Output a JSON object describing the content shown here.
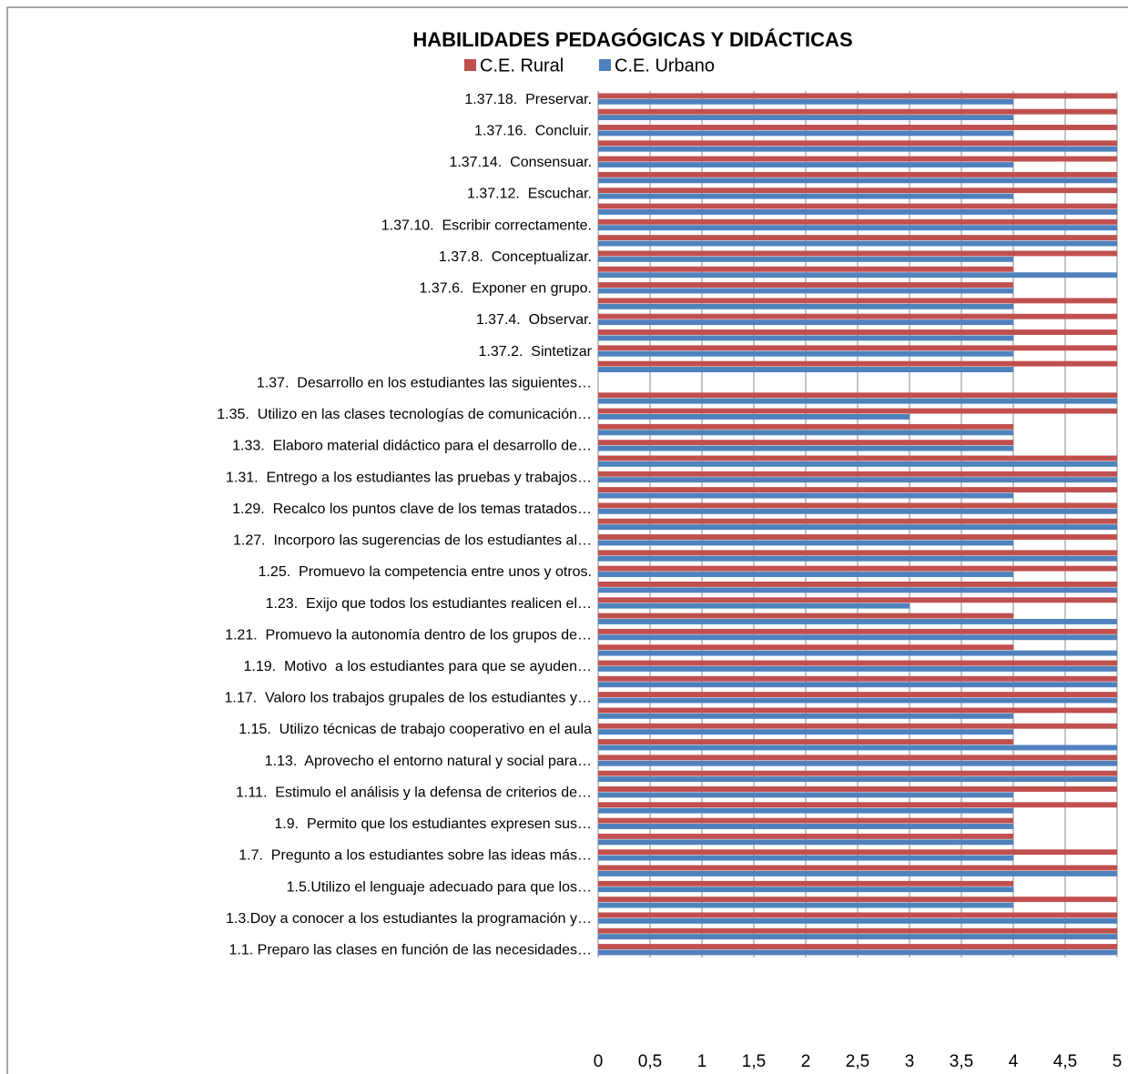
{
  "chart_data": {
    "type": "bar",
    "orientation": "horizontal",
    "title": "HABILIDADES PEDAGÓGICAS Y DIDÁCTICAS",
    "categories": [
      "1.1. Preparo las clases en función de las necesidades…",
      null,
      "1.3.Doy a conocer a los estudiantes la programación y…",
      null,
      "1.5.Utilizo el lenguaje adecuado para que los…",
      null,
      "1.7.  Pregunto a los estudiantes sobre las ideas más…",
      null,
      "1.9.  Permito que los estudiantes expresen sus…",
      null,
      "1.11.  Estimulo el análisis y la defensa de criterios de…",
      null,
      "1.13.  Aprovecho el entorno natural y social para…",
      null,
      "1.15.  Utilizo técnicas de trabajo cooperativo en el aula",
      null,
      "1.17.  Valoro los trabajos grupales de los estudiantes y…",
      null,
      "1.19.  Motivo  a los estudiantes para que se ayuden…",
      null,
      "1.21.  Promuevo la autonomía dentro de los grupos de…",
      null,
      "1.23.  Exijo que todos los estudiantes realicen el…",
      null,
      "1.25.  Promuevo la competencia entre unos y otros.",
      null,
      "1.27.  Incorporo las sugerencias de los estudiantes al…",
      null,
      "1.29.  Recalco los puntos clave de los temas tratados…",
      null,
      "1.31.  Entrego a los estudiantes las pruebas y trabajos…",
      null,
      "1.33.  Elaboro material didáctico para el desarrollo de…",
      null,
      "1.35.  Utilizo en las clases tecnologías de comunicación…",
      null,
      "1.37.  Desarrollo en los estudiantes las siguientes…",
      null,
      "1.37.2.  Sintetizar",
      null,
      "1.37.4.  Observar.",
      null,
      "1.37.6.  Exponer en grupo.",
      null,
      "1.37.8.  Conceptualizar.",
      null,
      "1.37.10.  Escribir correctamente.",
      null,
      "1.37.12.  Escuchar.",
      null,
      "1.37.14.  Consensuar.",
      null,
      "1.37.16.  Concluir.",
      null,
      "1.37.18.  Preservar."
    ],
    "series": [
      {
        "name": "C.E. Rural",
        "color": "#c0504d",
        "values": [
          5,
          5,
          5,
          5,
          4,
          5,
          5,
          4,
          4,
          5,
          5,
          5,
          5,
          4,
          5,
          5,
          5,
          5,
          5,
          4,
          5,
          4,
          5,
          5,
          5,
          5,
          5,
          5,
          5,
          5,
          5,
          5,
          4,
          4,
          5,
          5,
          null,
          5,
          5,
          5,
          5,
          5,
          4,
          4,
          5,
          5,
          5,
          5,
          5,
          5,
          5,
          5,
          5,
          5,
          5
        ]
      },
      {
        "name": "C.E. Urbano",
        "color": "#4f81bd",
        "values": [
          5,
          5,
          5,
          4,
          4,
          5,
          4,
          4,
          4,
          4,
          4,
          5,
          5,
          5,
          4,
          4,
          5,
          5,
          5,
          5,
          5,
          5,
          3,
          5,
          4,
          5,
          4,
          5,
          5,
          4,
          5,
          5,
          4,
          4,
          3,
          5,
          null,
          4,
          4,
          4,
          4,
          4,
          4,
          5,
          4,
          5,
          5,
          5,
          4,
          5,
          4,
          5,
          4,
          4,
          4
        ]
      }
    ],
    "xlim": [
      0,
      5
    ],
    "xticks": [
      0,
      {
        "value": 0.5,
        "label": "0,5"
      },
      1,
      {
        "value": 1.5,
        "label": "1,5"
      },
      2,
      {
        "value": 2.5,
        "label": "2,5"
      },
      3,
      {
        "value": 3.5,
        "label": "3,5"
      },
      4,
      {
        "value": 4.5,
        "label": "4,5"
      },
      5
    ],
    "grid": true,
    "legend": "top"
  }
}
